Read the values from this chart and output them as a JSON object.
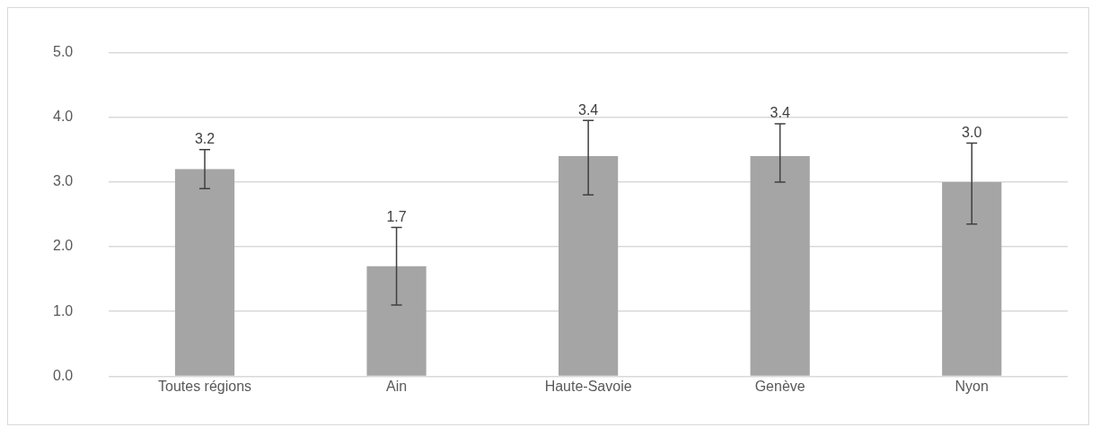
{
  "chart_data": {
    "type": "bar",
    "categories": [
      "Toutes régions",
      "Ain",
      "Haute-Savoie",
      "Genève",
      "Nyon"
    ],
    "values": [
      3.2,
      1.7,
      3.4,
      3.4,
      3.0
    ],
    "errors": [
      [
        2.9,
        3.5
      ],
      [
        1.1,
        2.3
      ],
      [
        2.8,
        3.95
      ],
      [
        3.0,
        3.9
      ],
      [
        2.35,
        3.6
      ]
    ],
    "color": "#a5a5a5",
    "ylim": [
      0,
      5
    ],
    "yticks": [
      {
        "value": 0,
        "label": "0.0"
      },
      {
        "value": 1,
        "label": "1.0"
      },
      {
        "value": 2,
        "label": "2.0"
      },
      {
        "value": 3,
        "label": "3.0"
      },
      {
        "value": 4,
        "label": "4.0"
      },
      {
        "value": 5,
        "label": "5.0"
      }
    ],
    "value_labels": [
      "3.2",
      "1.7",
      "3.4",
      "3.4",
      "3.0"
    ],
    "grid": "y",
    "legend": false
  }
}
